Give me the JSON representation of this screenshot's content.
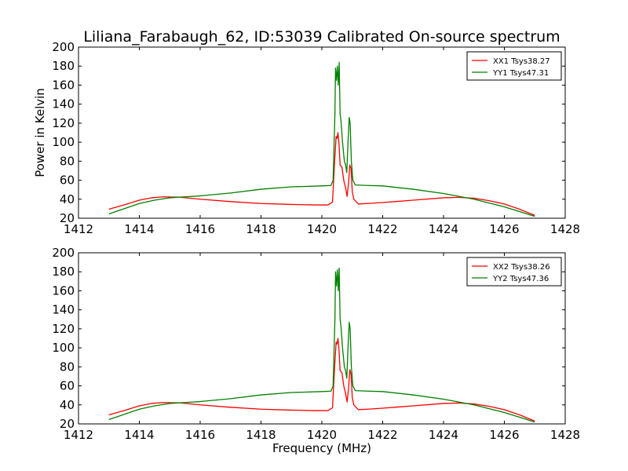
{
  "figure": {
    "title": "Liliana_Farabaugh_62, ID:53039 Calibrated On-source spectrum",
    "ylabel": "Power in Kelvin",
    "xlabel": "Frequency (MHz)",
    "colors": {
      "xx": "#ff0000",
      "yy": "#008000"
    }
  },
  "chart_data": [
    {
      "type": "line",
      "xlim": [
        1412,
        1428
      ],
      "ylim": [
        20,
        200
      ],
      "xticks": [
        1412,
        1414,
        1416,
        1418,
        1420,
        1422,
        1424,
        1426,
        1428
      ],
      "yticks": [
        20,
        40,
        60,
        80,
        100,
        120,
        140,
        160,
        180,
        200
      ],
      "grid": false,
      "legend_position": "top-right",
      "series": [
        {
          "name": "XX1 Tsys38.27",
          "color": "#ff0000",
          "points": [
            [
              1413.0,
              29.5
            ],
            [
              1413.5,
              34
            ],
            [
              1414.0,
              39
            ],
            [
              1414.4,
              41.5
            ],
            [
              1414.8,
              42.5
            ],
            [
              1415.3,
              42.2
            ],
            [
              1416.0,
              40
            ],
            [
              1417.0,
              37.5
            ],
            [
              1418.0,
              35.5
            ],
            [
              1419.0,
              34.5
            ],
            [
              1419.8,
              34
            ],
            [
              1420.2,
              34
            ],
            [
              1420.35,
              37
            ],
            [
              1420.42,
              80
            ],
            [
              1420.47,
              106
            ],
            [
              1420.5,
              104
            ],
            [
              1420.53,
              110
            ],
            [
              1420.56,
              100
            ],
            [
              1420.6,
              76
            ],
            [
              1420.66,
              74
            ],
            [
              1420.72,
              60
            ],
            [
              1420.78,
              52
            ],
            [
              1420.83,
              43
            ],
            [
              1420.88,
              58
            ],
            [
              1420.92,
              76
            ],
            [
              1420.96,
              72
            ],
            [
              1421.0,
              48
            ],
            [
              1421.05,
              40
            ],
            [
              1421.2,
              35
            ],
            [
              1421.5,
              35.5
            ],
            [
              1422.0,
              36.5
            ],
            [
              1423.0,
              39
            ],
            [
              1424.0,
              41.5
            ],
            [
              1424.5,
              42
            ],
            [
              1425.0,
              41
            ],
            [
              1425.5,
              38.5
            ],
            [
              1426.0,
              35
            ],
            [
              1426.5,
              29.5
            ],
            [
              1427.0,
              23
            ]
          ]
        },
        {
          "name": "YY1 Tsys47.31",
          "color": "#008000",
          "points": [
            [
              1413.0,
              24.5
            ],
            [
              1413.5,
              30
            ],
            [
              1414.0,
              35.5
            ],
            [
              1414.5,
              39
            ],
            [
              1415.0,
              41.5
            ],
            [
              1415.5,
              42.5
            ],
            [
              1416.0,
              43.5
            ],
            [
              1417.0,
              46.5
            ],
            [
              1418.0,
              50.5
            ],
            [
              1419.0,
              53
            ],
            [
              1420.0,
              54
            ],
            [
              1420.3,
              54.5
            ],
            [
              1420.37,
              60
            ],
            [
              1420.43,
              130
            ],
            [
              1420.45,
              178
            ],
            [
              1420.48,
              165
            ],
            [
              1420.51,
              180
            ],
            [
              1420.54,
              160
            ],
            [
              1420.57,
              184
            ],
            [
              1420.6,
              130
            ],
            [
              1420.63,
              122
            ],
            [
              1420.68,
              100
            ],
            [
              1420.74,
              80
            ],
            [
              1420.78,
              76
            ],
            [
              1420.82,
              68
            ],
            [
              1420.86,
              100
            ],
            [
              1420.9,
              126
            ],
            [
              1420.93,
              120
            ],
            [
              1420.97,
              80
            ],
            [
              1421.02,
              60
            ],
            [
              1421.1,
              55
            ],
            [
              1421.5,
              54.5
            ],
            [
              1422.0,
              54
            ],
            [
              1423.0,
              50.5
            ],
            [
              1424.0,
              46
            ],
            [
              1425.0,
              40
            ],
            [
              1425.5,
              36
            ],
            [
              1426.0,
              32
            ],
            [
              1426.5,
              27
            ],
            [
              1427.0,
              22
            ]
          ]
        }
      ]
    },
    {
      "type": "line",
      "xlim": [
        1412,
        1428
      ],
      "ylim": [
        20,
        200
      ],
      "xticks": [
        1412,
        1414,
        1416,
        1418,
        1420,
        1422,
        1424,
        1426,
        1428
      ],
      "yticks": [
        20,
        40,
        60,
        80,
        100,
        120,
        140,
        160,
        180,
        200
      ],
      "grid": false,
      "legend_position": "top-right",
      "series": [
        {
          "name": "XX2 Tsys38.26",
          "color": "#ff0000",
          "points": [
            [
              1413.0,
              29.5
            ],
            [
              1413.5,
              34
            ],
            [
              1414.0,
              39
            ],
            [
              1414.4,
              41.5
            ],
            [
              1414.8,
              42.5
            ],
            [
              1415.3,
              42.2
            ],
            [
              1416.0,
              40
            ],
            [
              1417.0,
              37.5
            ],
            [
              1418.0,
              35.5
            ],
            [
              1419.0,
              34.5
            ],
            [
              1419.8,
              34
            ],
            [
              1420.2,
              34
            ],
            [
              1420.35,
              37
            ],
            [
              1420.42,
              80
            ],
            [
              1420.47,
              106
            ],
            [
              1420.5,
              104
            ],
            [
              1420.53,
              110
            ],
            [
              1420.56,
              100
            ],
            [
              1420.6,
              76
            ],
            [
              1420.66,
              74
            ],
            [
              1420.72,
              60
            ],
            [
              1420.78,
              52
            ],
            [
              1420.83,
              43
            ],
            [
              1420.88,
              58
            ],
            [
              1420.92,
              77
            ],
            [
              1420.96,
              72
            ],
            [
              1421.0,
              48
            ],
            [
              1421.05,
              40
            ],
            [
              1421.2,
              35
            ],
            [
              1421.5,
              35.5
            ],
            [
              1422.0,
              36.5
            ],
            [
              1423.0,
              39
            ],
            [
              1424.0,
              41.5
            ],
            [
              1424.5,
              42
            ],
            [
              1425.0,
              41
            ],
            [
              1425.5,
              38.5
            ],
            [
              1426.0,
              35
            ],
            [
              1426.5,
              29.5
            ],
            [
              1427.0,
              23
            ]
          ]
        },
        {
          "name": "YY2 Tsys47.36",
          "color": "#008000",
          "points": [
            [
              1413.0,
              24.5
            ],
            [
              1413.5,
              30
            ],
            [
              1414.0,
              35.5
            ],
            [
              1414.5,
              39
            ],
            [
              1415.0,
              41.5
            ],
            [
              1415.5,
              42.5
            ],
            [
              1416.0,
              43.5
            ],
            [
              1417.0,
              46.5
            ],
            [
              1418.0,
              50.5
            ],
            [
              1419.0,
              53
            ],
            [
              1420.0,
              54
            ],
            [
              1420.3,
              54.5
            ],
            [
              1420.37,
              60
            ],
            [
              1420.43,
              130
            ],
            [
              1420.45,
              180
            ],
            [
              1420.48,
              165
            ],
            [
              1420.51,
              182
            ],
            [
              1420.54,
              160
            ],
            [
              1420.57,
              184
            ],
            [
              1420.6,
              130
            ],
            [
              1420.63,
              122
            ],
            [
              1420.68,
              100
            ],
            [
              1420.74,
              80
            ],
            [
              1420.78,
              76
            ],
            [
              1420.82,
              68
            ],
            [
              1420.86,
              100
            ],
            [
              1420.9,
              127
            ],
            [
              1420.93,
              120
            ],
            [
              1420.97,
              80
            ],
            [
              1421.02,
              60
            ],
            [
              1421.1,
              55
            ],
            [
              1421.5,
              54.5
            ],
            [
              1422.0,
              54
            ],
            [
              1423.0,
              50.5
            ],
            [
              1424.0,
              46
            ],
            [
              1425.0,
              40
            ],
            [
              1425.5,
              36
            ],
            [
              1426.0,
              32
            ],
            [
              1426.5,
              27
            ],
            [
              1427.0,
              22
            ]
          ]
        }
      ]
    }
  ]
}
